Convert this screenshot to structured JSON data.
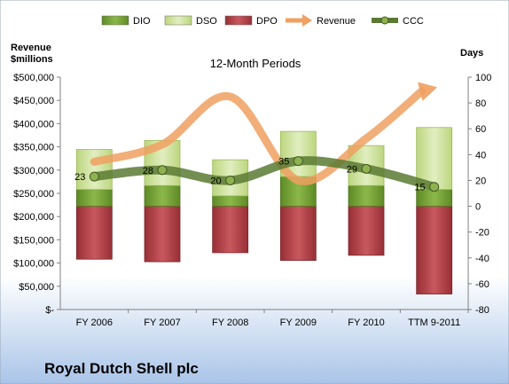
{
  "chart_data": {
    "type": "bar",
    "subtitle": "12-Month Periods",
    "company": "Royal Dutch Shell plc",
    "left_axis_title": [
      "Revenue",
      "$millions"
    ],
    "right_axis_title": "Days",
    "categories": [
      "FY 2006",
      "FY 2007",
      "FY 2008",
      "FY 2009",
      "FY 2010",
      "TTM 9-2011"
    ],
    "left_axis": {
      "min": 0,
      "max": 500000,
      "step": 50000,
      "tick_labels": [
        "$-",
        "$50,000",
        "$100,000",
        "$150,000",
        "$200,000",
        "$250,000",
        "$300,000",
        "$350,000",
        "$400,000",
        "$450,000",
        "$500,000"
      ]
    },
    "right_axis": {
      "min": -80,
      "max": 100,
      "step": 20,
      "tick_labels": [
        "-80",
        "-60",
        "-40",
        "-20",
        "0",
        "20",
        "40",
        "60",
        "80",
        "100"
      ]
    },
    "legend": {
      "placement": "top",
      "items": [
        {
          "key": "dio",
          "label": "DIO",
          "kind": "bar"
        },
        {
          "key": "dso",
          "label": "DSO",
          "kind": "bar"
        },
        {
          "key": "dpo",
          "label": "DPO",
          "kind": "bar"
        },
        {
          "key": "revenue",
          "label": "Revenue",
          "kind": "arrow"
        },
        {
          "key": "ccc",
          "label": "CCC",
          "kind": "line"
        }
      ]
    },
    "series": [
      {
        "key": "dio",
        "name": "DIO",
        "axis": "right",
        "values": [
          13,
          16,
          8,
          23,
          16,
          13
        ]
      },
      {
        "key": "dso",
        "name": "DSO",
        "axis": "right",
        "values": [
          31,
          35,
          28,
          35,
          31,
          48
        ]
      },
      {
        "key": "dpo",
        "name": "DPO",
        "axis": "right",
        "values": [
          -41,
          -43,
          -36,
          -42,
          -38,
          -68
        ]
      },
      {
        "key": "revenue",
        "name": "Revenue",
        "axis": "left",
        "values": [
          318000,
          355000,
          458000,
          278000,
          368000,
          470000
        ]
      },
      {
        "key": "ccc",
        "name": "CCC",
        "axis": "right",
        "values": [
          23,
          28,
          20,
          35,
          29,
          15
        ],
        "labels": [
          "23",
          "28",
          "20",
          "35",
          "29",
          "15"
        ]
      }
    ],
    "colors": {
      "dio": "#7fa83a",
      "dso": "#cfe39a",
      "dpo": "#b5434a",
      "revenue": "#f0a060",
      "ccc": "#5a7a32",
      "background_top": "#ffffff",
      "background_bottom": "#a9c4e8"
    },
    "grid": false
  }
}
